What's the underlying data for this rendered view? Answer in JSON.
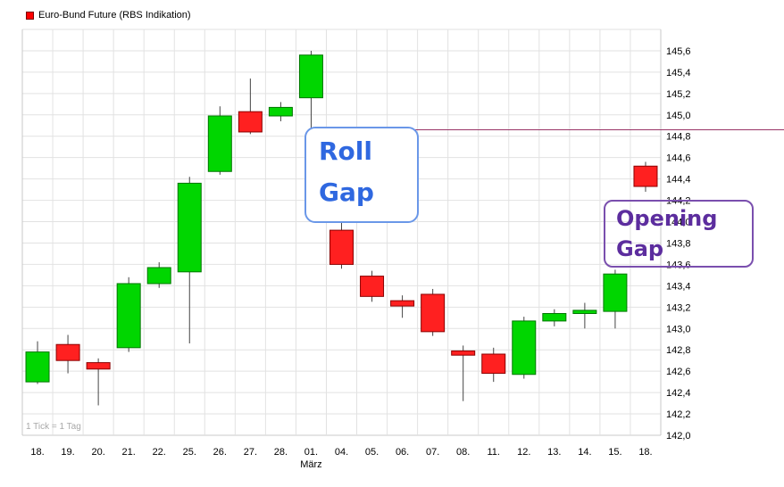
{
  "legend": {
    "label": "Euro-Bund Future (RBS Indikation)",
    "marker_color": "#ff0000"
  },
  "footer_note": "1 Tick = 1 Tag",
  "annotations": {
    "roll_gap": {
      "line1": "Roll",
      "line2": "Gap",
      "color": "#2f68e0",
      "border": "#6a97e8"
    },
    "opening_gap": {
      "line1": "Opening",
      "line2": "Gap",
      "color": "#5c2d9e",
      "border": "#7a4fae"
    }
  },
  "chart_data": {
    "type": "candlestick",
    "title": "Euro-Bund Future (RBS Indikation)",
    "x_labels": [
      "18.",
      "19.",
      "20.",
      "21.",
      "22.",
      "25.",
      "26.",
      "27.",
      "28.",
      "01.",
      "04.",
      "05.",
      "06.",
      "07.",
      "08.",
      "11.",
      "12.",
      "13.",
      "14.",
      "15.",
      "18."
    ],
    "month_label": {
      "text": "März",
      "index": 9
    },
    "y_ticks": [
      "145,6",
      "145,4",
      "145,2",
      "145,0",
      "144,8",
      "144,6",
      "144,4",
      "144,2",
      "144,0",
      "143,8",
      "143,6",
      "143,4",
      "143,2",
      "143,0",
      "142,8",
      "142,6",
      "142,4",
      "142,2",
      "142,0"
    ],
    "ylim": [
      142.0,
      145.8
    ],
    "grid": true,
    "candles": [
      {
        "date": "18.",
        "o": 142.5,
        "h": 142.88,
        "l": 142.48,
        "c": 142.78
      },
      {
        "date": "19.",
        "o": 142.85,
        "h": 142.94,
        "l": 142.58,
        "c": 142.7
      },
      {
        "date": "20.",
        "o": 142.68,
        "h": 142.72,
        "l": 142.28,
        "c": 142.62
      },
      {
        "date": "21.",
        "o": 142.82,
        "h": 143.48,
        "l": 142.78,
        "c": 143.42
      },
      {
        "date": "22.",
        "o": 143.42,
        "h": 143.62,
        "l": 143.38,
        "c": 143.57
      },
      {
        "date": "25.",
        "o": 143.53,
        "h": 144.42,
        "l": 142.86,
        "c": 144.36
      },
      {
        "date": "26.",
        "o": 144.47,
        "h": 145.08,
        "l": 144.44,
        "c": 144.99
      },
      {
        "date": "27.",
        "o": 145.03,
        "h": 145.34,
        "l": 144.82,
        "c": 144.84
      },
      {
        "date": "28.",
        "o": 144.99,
        "h": 145.12,
        "l": 144.94,
        "c": 145.07
      },
      {
        "date": "01.",
        "o": 145.16,
        "h": 145.6,
        "l": 144.81,
        "c": 145.56
      },
      {
        "date": "04.",
        "o": 143.92,
        "h": 143.99,
        "l": 143.56,
        "c": 143.6
      },
      {
        "date": "05.",
        "o": 143.49,
        "h": 143.54,
        "l": 143.25,
        "c": 143.3
      },
      {
        "date": "06.",
        "o": 143.26,
        "h": 143.31,
        "l": 143.1,
        "c": 143.21
      },
      {
        "date": "07.",
        "o": 143.32,
        "h": 143.37,
        "l": 142.93,
        "c": 142.97
      },
      {
        "date": "08.",
        "o": 142.79,
        "h": 142.84,
        "l": 142.32,
        "c": 142.75
      },
      {
        "date": "11.",
        "o": 142.76,
        "h": 142.82,
        "l": 142.5,
        "c": 142.58
      },
      {
        "date": "12.",
        "o": 142.57,
        "h": 143.11,
        "l": 142.53,
        "c": 143.07
      },
      {
        "date": "13.",
        "o": 143.07,
        "h": 143.18,
        "l": 143.02,
        "c": 143.14
      },
      {
        "date": "14.",
        "o": 143.14,
        "h": 143.24,
        "l": 143.0,
        "c": 143.17
      },
      {
        "date": "15.",
        "o": 143.16,
        "h": 143.55,
        "l": 143.0,
        "c": 143.51
      },
      {
        "date": "18.",
        "o": 144.52,
        "h": 144.56,
        "l": 144.28,
        "c": 144.33
      }
    ],
    "hline": {
      "value": 144.86,
      "color": "#993366",
      "start_index": 9
    },
    "colors": {
      "up": "#00d600",
      "up_border": "#007700",
      "down": "#ff2020",
      "down_border": "#8b0000",
      "wick": "#444444",
      "grid": "#e2e2e2",
      "axis_text": "#000000"
    }
  }
}
